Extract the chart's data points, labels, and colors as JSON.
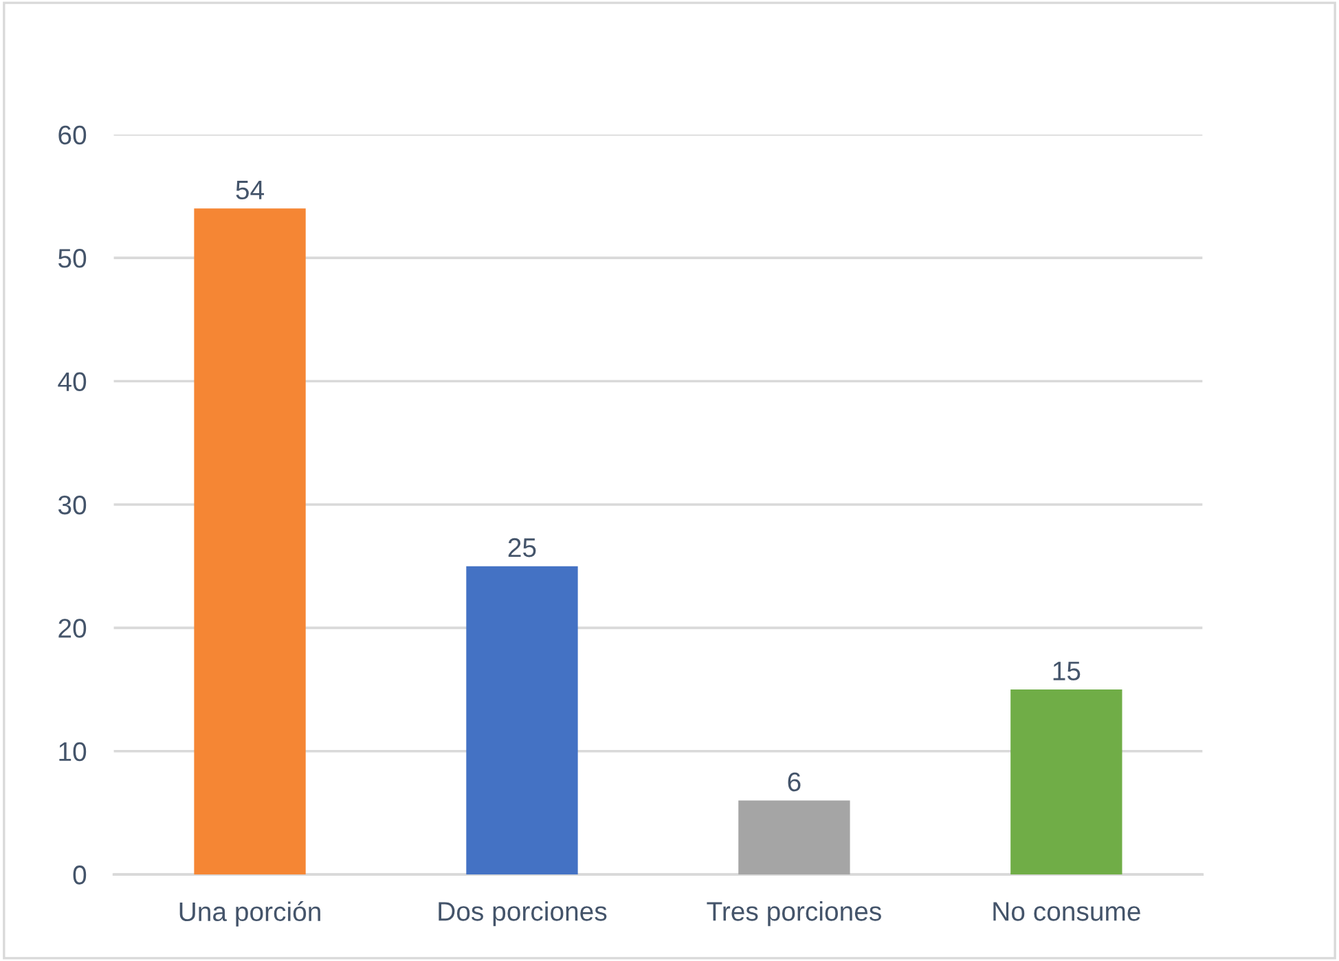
{
  "chart_data": {
    "type": "bar",
    "categories": [
      "Una porción",
      "Dos porciones",
      "Tres porciones",
      "No consume"
    ],
    "values": [
      54,
      25,
      6,
      15
    ],
    "colors": [
      "#f58634",
      "#4472c4",
      "#a5a5a5",
      "#70ad47"
    ],
    "ylim": [
      0,
      60
    ],
    "yticks": [
      0,
      10,
      20,
      30,
      40,
      50,
      60
    ],
    "grid": "y",
    "data_labels": true
  }
}
